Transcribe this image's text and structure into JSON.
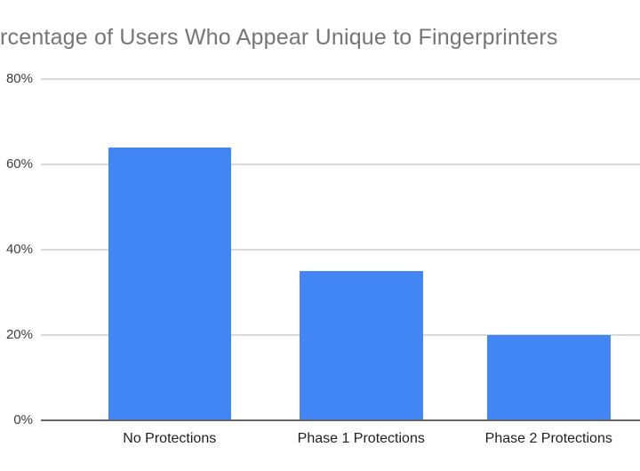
{
  "page": {
    "background": "#ffffff"
  },
  "chart_data": {
    "type": "bar",
    "title": "rcentage of Users Who Appear Unique to Fingerprinters",
    "categories": [
      "No Protections",
      "Phase 1 Protections",
      "Phase 2 Protections"
    ],
    "values": [
      64,
      35,
      20
    ],
    "value_unit": "%",
    "xlabel": "",
    "ylabel": "",
    "ylim": [
      0,
      80
    ],
    "yticks": [
      0,
      20,
      40,
      60,
      80
    ],
    "ytick_labels": [
      "0%",
      "20%",
      "40%",
      "60%",
      "80%"
    ],
    "grid": true,
    "legend": "none",
    "colors": {
      "bar": "#4285f4",
      "gridline": "#d9d9d9",
      "axis_line": "#666666",
      "title_text": "#757575",
      "y_axis_label": "#3c3c3c",
      "x_axis_label": "#1f1f1f"
    }
  }
}
